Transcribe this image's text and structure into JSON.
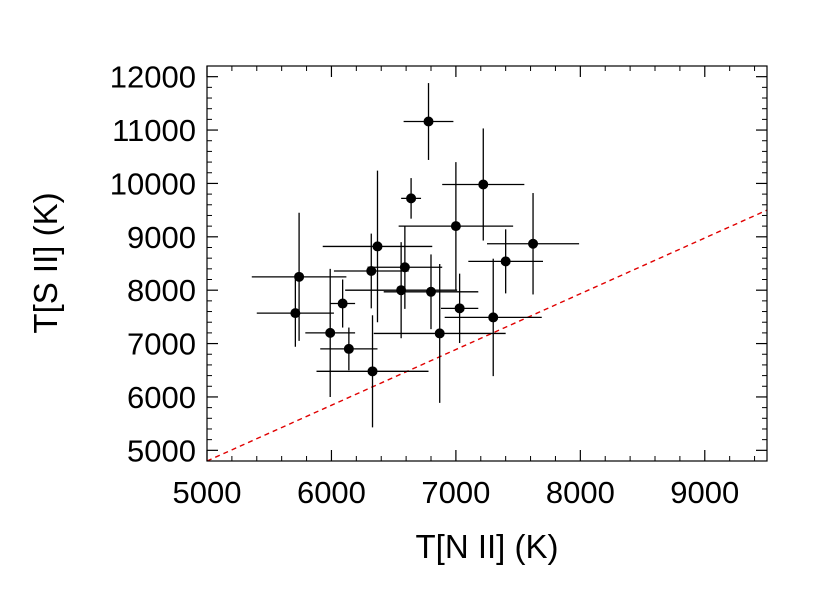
{
  "chart_data": {
    "type": "scatter",
    "title": "",
    "xlabel": "T[N II] (K)",
    "ylabel": "T[S II] (K)",
    "xlim": [
      5000,
      9500
    ],
    "ylim": [
      4800,
      12200
    ],
    "x_ticks": [
      5000,
      6000,
      7000,
      8000,
      9000
    ],
    "y_ticks": [
      5000,
      6000,
      7000,
      8000,
      9000,
      10000,
      11000,
      12000
    ],
    "x_tick_labels": [
      "5000",
      "6000",
      "7000",
      "8000",
      "9000"
    ],
    "y_tick_labels": [
      "5000",
      "6000",
      "7000",
      "8000",
      "9000",
      "10000",
      "11000",
      "12000"
    ],
    "grid": false,
    "colors": {
      "points": "#000000",
      "reference_line": "#e00000"
    },
    "reference_line": {
      "style": "dashed",
      "points": [
        [
          5000,
          4800
        ],
        [
          9500,
          9500
        ]
      ]
    },
    "series": [
      {
        "points": [
          {
            "x": 6780,
            "y": 11160,
            "xerr": 200,
            "yerr": 720
          },
          {
            "x": 7220,
            "y": 9980,
            "xerr": 330,
            "yerr": 1050
          },
          {
            "x": 6640,
            "y": 9720,
            "xerr": 80,
            "yerr": 380
          },
          {
            "x": 7000,
            "y": 9200,
            "xerr": 460,
            "yerr": 1200
          },
          {
            "x": 7620,
            "y": 8870,
            "xerr": 370,
            "yerr": 950
          },
          {
            "x": 6370,
            "y": 8820,
            "xerr": 440,
            "yerr": 1420
          },
          {
            "x": 7400,
            "y": 8540,
            "xerr": 300,
            "yerr": 600
          },
          {
            "x": 6590,
            "y": 8430,
            "xerr": 300,
            "yerr": 780
          },
          {
            "x": 6320,
            "y": 8360,
            "xerr": 300,
            "yerr": 700
          },
          {
            "x": 5740,
            "y": 8250,
            "xerr": 380,
            "yerr": 1200
          },
          {
            "x": 6560,
            "y": 8000,
            "xerr": 450,
            "yerr": 900
          },
          {
            "x": 6800,
            "y": 7970,
            "xerr": 380,
            "yerr": 700
          },
          {
            "x": 6090,
            "y": 7750,
            "xerr": 100,
            "yerr": 450
          },
          {
            "x": 7030,
            "y": 7660,
            "xerr": 150,
            "yerr": 650
          },
          {
            "x": 5710,
            "y": 7570,
            "xerr": 310,
            "yerr": 630
          },
          {
            "x": 7300,
            "y": 7490,
            "xerr": 390,
            "yerr": 1100
          },
          {
            "x": 5990,
            "y": 7200,
            "xerr": 200,
            "yerr": 1200
          },
          {
            "x": 6870,
            "y": 7190,
            "xerr": 530,
            "yerr": 1300
          },
          {
            "x": 6140,
            "y": 6900,
            "xerr": 230,
            "yerr": 400
          },
          {
            "x": 6330,
            "y": 6480,
            "xerr": 450,
            "yerr": 1050
          }
        ]
      }
    ]
  }
}
